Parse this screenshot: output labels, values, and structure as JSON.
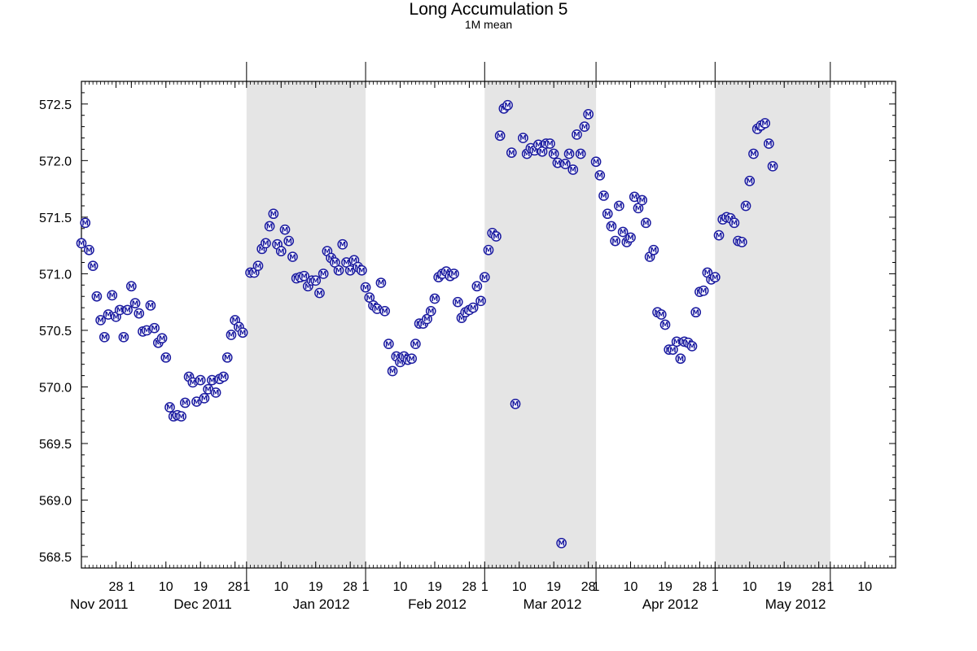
{
  "chart_data": {
    "type": "scatter",
    "title": "Long Accumulation 5",
    "subtitle": "1M mean",
    "marker_label": "M",
    "marker_color": "#1a1aa0",
    "shade_color": "#e5e5e5",
    "x_range": [
      "2011-10-19",
      "2012-05-18"
    ],
    "y_range": [
      568.4,
      572.7
    ],
    "y_ticks": [
      "568.5",
      "569.0",
      "569.5",
      "570.0",
      "570.5",
      "571.0",
      "571.5",
      "572.0",
      "572.5"
    ],
    "shaded_months": [
      [
        "2011-12-01",
        "2012-01-01"
      ],
      [
        "2012-02-01",
        "2012-03-01"
      ],
      [
        "2012-04-01",
        "2012-05-01"
      ]
    ],
    "x_day_ticks": [
      {
        "date": "2011-10-28",
        "label": "28"
      },
      {
        "date": "2011-11-01",
        "label": "1"
      },
      {
        "date": "2011-11-10",
        "label": "10"
      },
      {
        "date": "2011-11-19",
        "label": "19"
      },
      {
        "date": "2011-11-28",
        "label": "28"
      },
      {
        "date": "2011-12-01",
        "label": "1"
      },
      {
        "date": "2011-12-10",
        "label": "10"
      },
      {
        "date": "2011-12-19",
        "label": "19"
      },
      {
        "date": "2011-12-28",
        "label": "28"
      },
      {
        "date": "2012-01-01",
        "label": "1"
      },
      {
        "date": "2012-01-10",
        "label": "10"
      },
      {
        "date": "2012-01-19",
        "label": "19"
      },
      {
        "date": "2012-01-28",
        "label": "28"
      },
      {
        "date": "2012-02-01",
        "label": "1"
      },
      {
        "date": "2012-02-10",
        "label": "10"
      },
      {
        "date": "2012-02-19",
        "label": "19"
      },
      {
        "date": "2012-02-28",
        "label": "28"
      },
      {
        "date": "2012-03-01",
        "label": "1"
      },
      {
        "date": "2012-03-10",
        "label": "10"
      },
      {
        "date": "2012-03-19",
        "label": "19"
      },
      {
        "date": "2012-03-28",
        "label": "28"
      },
      {
        "date": "2012-04-01",
        "label": "1"
      },
      {
        "date": "2012-04-10",
        "label": "10"
      },
      {
        "date": "2012-04-19",
        "label": "19"
      },
      {
        "date": "2012-04-28",
        "label": "28"
      },
      {
        "date": "2012-05-01",
        "label": "1"
      },
      {
        "date": "2012-05-10",
        "label": "10"
      }
    ],
    "x_month_labels": [
      {
        "date": "2011-10-19",
        "label": "Nov 2011"
      },
      {
        "date": "2011-11-15",
        "label": "Dec 2011"
      },
      {
        "date": "2011-12-16",
        "label": "Jan 2012"
      },
      {
        "date": "2012-01-15",
        "label": "Feb 2012"
      },
      {
        "date": "2012-02-14",
        "label": "Mar 2012"
      },
      {
        "date": "2012-03-16",
        "label": "Apr 2012"
      },
      {
        "date": "2012-04-17",
        "label": "May 2012"
      }
    ],
    "points": [
      [
        "2011-10-19",
        571.27
      ],
      [
        "2011-10-20",
        571.45
      ],
      [
        "2011-10-21",
        571.21
      ],
      [
        "2011-10-22",
        571.07
      ],
      [
        "2011-10-23",
        570.8
      ],
      [
        "2011-10-24",
        570.59
      ],
      [
        "2011-10-25",
        570.44
      ],
      [
        "2011-10-26",
        570.64
      ],
      [
        "2011-10-27",
        570.81
      ],
      [
        "2011-10-28",
        570.62
      ],
      [
        "2011-10-29",
        570.68
      ],
      [
        "2011-10-30",
        570.44
      ],
      [
        "2011-10-31",
        570.68
      ],
      [
        "2011-11-01",
        570.89
      ],
      [
        "2011-11-02",
        570.74
      ],
      [
        "2011-11-03",
        570.65
      ],
      [
        "2011-11-04",
        570.49
      ],
      [
        "2011-11-05",
        570.5
      ],
      [
        "2011-11-06",
        570.72
      ],
      [
        "2011-11-07",
        570.52
      ],
      [
        "2011-11-08",
        570.39
      ],
      [
        "2011-11-09",
        570.43
      ],
      [
        "2011-11-10",
        570.26
      ],
      [
        "2011-11-11",
        569.82
      ],
      [
        "2011-11-12",
        569.74
      ],
      [
        "2011-11-13",
        569.75
      ],
      [
        "2011-11-14",
        569.74
      ],
      [
        "2011-11-15",
        569.86
      ],
      [
        "2011-11-16",
        570.09
      ],
      [
        "2011-11-17",
        570.04
      ],
      [
        "2011-11-18",
        569.87
      ],
      [
        "2011-11-19",
        570.06
      ],
      [
        "2011-11-20",
        569.9
      ],
      [
        "2011-11-21",
        569.98
      ],
      [
        "2011-11-22",
        570.06
      ],
      [
        "2011-11-23",
        569.95
      ],
      [
        "2011-11-24",
        570.07
      ],
      [
        "2011-11-25",
        570.09
      ],
      [
        "2011-11-26",
        570.26
      ],
      [
        "2011-11-27",
        570.46
      ],
      [
        "2011-11-28",
        570.59
      ],
      [
        "2011-11-29",
        570.53
      ],
      [
        "2011-11-30",
        570.48
      ],
      [
        "2011-12-02",
        571.01
      ],
      [
        "2011-12-03",
        571.01
      ],
      [
        "2011-12-04",
        571.07
      ],
      [
        "2011-12-05",
        571.22
      ],
      [
        "2011-12-06",
        571.27
      ],
      [
        "2011-12-07",
        571.42
      ],
      [
        "2011-12-08",
        571.53
      ],
      [
        "2011-12-09",
        571.26
      ],
      [
        "2011-12-10",
        571.2
      ],
      [
        "2011-12-11",
        571.39
      ],
      [
        "2011-12-12",
        571.29
      ],
      [
        "2011-12-13",
        571.15
      ],
      [
        "2011-12-14",
        570.96
      ],
      [
        "2011-12-15",
        570.97
      ],
      [
        "2011-12-16",
        570.98
      ],
      [
        "2011-12-17",
        570.89
      ],
      [
        "2011-12-18",
        570.94
      ],
      [
        "2011-12-19",
        570.94
      ],
      [
        "2011-12-20",
        570.83
      ],
      [
        "2011-12-21",
        571.0
      ],
      [
        "2011-12-22",
        571.2
      ],
      [
        "2011-12-23",
        571.14
      ],
      [
        "2011-12-24",
        571.1
      ],
      [
        "2011-12-25",
        571.03
      ],
      [
        "2011-12-26",
        571.26
      ],
      [
        "2011-12-27",
        571.1
      ],
      [
        "2011-12-28",
        571.03
      ],
      [
        "2011-12-29",
        571.12
      ],
      [
        "2011-12-30",
        571.06
      ],
      [
        "2011-12-31",
        571.03
      ],
      [
        "2012-01-01",
        570.88
      ],
      [
        "2012-01-02",
        570.79
      ],
      [
        "2012-01-03",
        570.72
      ],
      [
        "2012-01-04",
        570.69
      ],
      [
        "2012-01-05",
        570.92
      ],
      [
        "2012-01-06",
        570.67
      ],
      [
        "2012-01-07",
        570.38
      ],
      [
        "2012-01-08",
        570.14
      ],
      [
        "2012-01-09",
        570.27
      ],
      [
        "2012-01-10",
        570.22
      ],
      [
        "2012-01-11",
        570.27
      ],
      [
        "2012-01-12",
        570.24
      ],
      [
        "2012-01-13",
        570.25
      ],
      [
        "2012-01-14",
        570.38
      ],
      [
        "2012-01-15",
        570.56
      ],
      [
        "2012-01-16",
        570.56
      ],
      [
        "2012-01-17",
        570.6
      ],
      [
        "2012-01-18",
        570.67
      ],
      [
        "2012-01-19",
        570.78
      ],
      [
        "2012-01-20",
        570.97
      ],
      [
        "2012-01-21",
        571.0
      ],
      [
        "2012-01-22",
        571.02
      ],
      [
        "2012-01-23",
        570.98
      ],
      [
        "2012-01-24",
        571.0
      ],
      [
        "2012-01-25",
        570.75
      ],
      [
        "2012-01-26",
        570.61
      ],
      [
        "2012-01-27",
        570.66
      ],
      [
        "2012-01-28",
        570.68
      ],
      [
        "2012-01-29",
        570.7
      ],
      [
        "2012-01-30",
        570.89
      ],
      [
        "2012-01-31",
        570.76
      ],
      [
        "2012-02-01",
        570.97
      ],
      [
        "2012-02-02",
        571.21
      ],
      [
        "2012-02-03",
        571.36
      ],
      [
        "2012-02-04",
        571.33
      ],
      [
        "2012-02-05",
        572.22
      ],
      [
        "2012-02-06",
        572.46
      ],
      [
        "2012-02-07",
        572.49
      ],
      [
        "2012-02-08",
        572.07
      ],
      [
        "2012-02-09",
        569.85
      ],
      [
        "2012-02-11",
        572.2
      ],
      [
        "2012-02-12",
        572.06
      ],
      [
        "2012-02-13",
        572.11
      ],
      [
        "2012-02-14",
        572.09
      ],
      [
        "2012-02-15",
        572.14
      ],
      [
        "2012-02-16",
        572.08
      ],
      [
        "2012-02-17",
        572.15
      ],
      [
        "2012-02-18",
        572.15
      ],
      [
        "2012-02-19",
        572.06
      ],
      [
        "2012-02-20",
        571.98
      ],
      [
        "2012-02-21",
        568.62
      ],
      [
        "2012-02-22",
        571.97
      ],
      [
        "2012-02-23",
        572.06
      ],
      [
        "2012-02-24",
        571.92
      ],
      [
        "2012-02-25",
        572.23
      ],
      [
        "2012-02-26",
        572.06
      ],
      [
        "2012-02-27",
        572.3
      ],
      [
        "2012-02-28",
        572.41
      ],
      [
        "2012-03-01",
        571.99
      ],
      [
        "2012-03-02",
        571.87
      ],
      [
        "2012-03-03",
        571.69
      ],
      [
        "2012-03-04",
        571.53
      ],
      [
        "2012-03-05",
        571.42
      ],
      [
        "2012-03-06",
        571.29
      ],
      [
        "2012-03-07",
        571.6
      ],
      [
        "2012-03-08",
        571.37
      ],
      [
        "2012-03-09",
        571.28
      ],
      [
        "2012-03-10",
        571.32
      ],
      [
        "2012-03-11",
        571.68
      ],
      [
        "2012-03-12",
        571.58
      ],
      [
        "2012-03-13",
        571.65
      ],
      [
        "2012-03-14",
        571.45
      ],
      [
        "2012-03-15",
        571.15
      ],
      [
        "2012-03-16",
        571.21
      ],
      [
        "2012-03-17",
        570.66
      ],
      [
        "2012-03-18",
        570.64
      ],
      [
        "2012-03-19",
        570.55
      ],
      [
        "2012-03-20",
        570.33
      ],
      [
        "2012-03-21",
        570.33
      ],
      [
        "2012-03-22",
        570.4
      ],
      [
        "2012-03-23",
        570.25
      ],
      [
        "2012-03-24",
        570.4
      ],
      [
        "2012-03-25",
        570.39
      ],
      [
        "2012-03-26",
        570.36
      ],
      [
        "2012-03-27",
        570.66
      ],
      [
        "2012-03-28",
        570.84
      ],
      [
        "2012-03-29",
        570.85
      ],
      [
        "2012-03-30",
        571.01
      ],
      [
        "2012-03-31",
        570.95
      ],
      [
        "2012-04-01",
        570.97
      ],
      [
        "2012-04-02",
        571.34
      ],
      [
        "2012-04-03",
        571.48
      ],
      [
        "2012-04-04",
        571.5
      ],
      [
        "2012-04-05",
        571.49
      ],
      [
        "2012-04-06",
        571.45
      ],
      [
        "2012-04-07",
        571.29
      ],
      [
        "2012-04-08",
        571.28
      ],
      [
        "2012-04-09",
        571.6
      ],
      [
        "2012-04-10",
        571.82
      ],
      [
        "2012-04-11",
        572.06
      ],
      [
        "2012-04-12",
        572.28
      ],
      [
        "2012-04-13",
        572.31
      ],
      [
        "2012-04-14",
        572.33
      ],
      [
        "2012-04-15",
        572.15
      ],
      [
        "2012-04-16",
        571.95
      ]
    ]
  }
}
